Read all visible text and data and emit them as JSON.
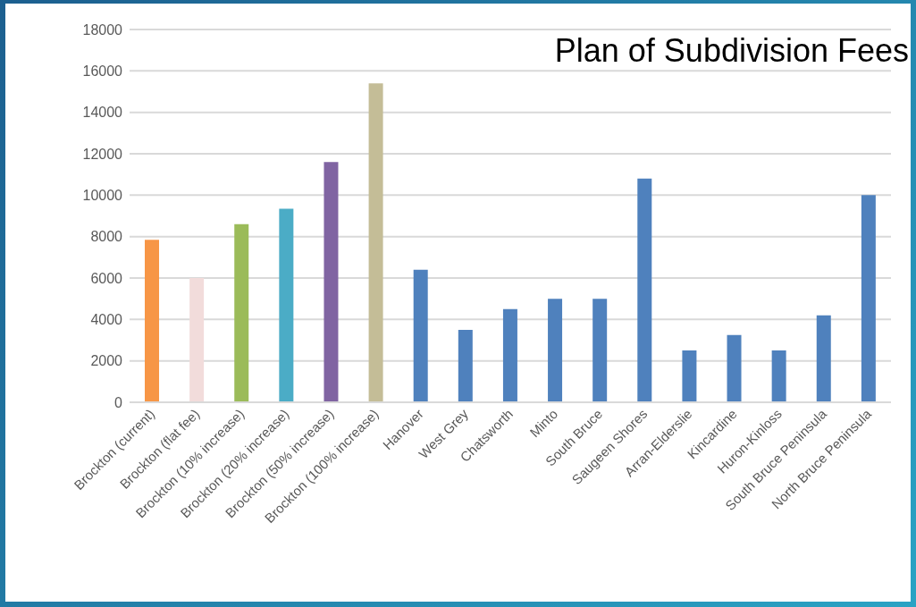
{
  "chart_data": {
    "type": "bar",
    "title": "Plan of Subdivision Fees",
    "categories": [
      "Brockton (current)",
      "Brockton (flat fee)",
      "Brockton (10% increase)",
      "Brockton (20% increase)",
      "Brockton (50% increase)",
      "Brockton (100% increase)",
      "Hanover",
      "West Grey",
      "Chatsworth",
      "Minto",
      "South Bruce",
      "Saugeen Shores",
      "Arran-Elderslie",
      "Kincardine",
      "Huron-Kinloss",
      "South Bruce Peninsula",
      "North Bruce Peninsula"
    ],
    "values": [
      7850,
      6000,
      8600,
      9350,
      11600,
      15400,
      6400,
      3500,
      4500,
      5000,
      5000,
      10800,
      2500,
      3250,
      2500,
      4200,
      10000
    ],
    "colors": [
      "#f79646",
      "#f2dcdb",
      "#9bbb59",
      "#4bacc6",
      "#8064a2",
      "#c4bd97",
      "#4f81bd",
      "#4f81bd",
      "#4f81bd",
      "#4f81bd",
      "#4f81bd",
      "#4f81bd",
      "#4f81bd",
      "#4f81bd",
      "#4f81bd",
      "#4f81bd",
      "#4f81bd"
    ],
    "ylim": [
      0,
      18000
    ],
    "yticks": [
      0,
      2000,
      4000,
      6000,
      8000,
      10000,
      12000,
      14000,
      16000,
      18000
    ],
    "grid": "y",
    "legend": false
  }
}
